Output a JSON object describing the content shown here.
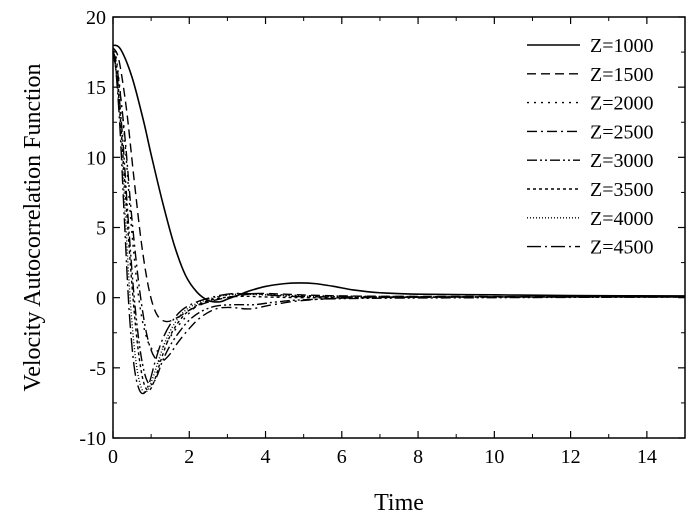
{
  "chart_data": {
    "type": "line",
    "title": "",
    "xlabel": "Time",
    "ylabel": "Velocity Autocorrelation Function",
    "xlim": [
      0,
      15
    ],
    "ylim": [
      -10,
      20
    ],
    "xticks": [
      0,
      2,
      4,
      6,
      8,
      10,
      12,
      14
    ],
    "yticks": [
      -10,
      -5,
      0,
      5,
      10,
      15,
      20
    ],
    "xtick_labels": [
      "0",
      "2",
      "4",
      "6",
      "8",
      "10",
      "12",
      "14"
    ],
    "ytick_labels": [
      "-10",
      "-5",
      "0",
      "5",
      "10",
      "15",
      "20"
    ],
    "grid": false,
    "legend_position": "top-right",
    "color": "#000000",
    "series": [
      {
        "name": "Z=1000",
        "dash": "solid",
        "x": [
          0,
          0.2,
          0.5,
          0.8,
          1.0,
          1.3,
          1.6,
          1.9,
          2.2,
          2.5,
          2.8,
          3.0,
          3.3,
          3.6,
          4.0,
          4.5,
          4.9,
          5.3,
          5.8,
          6.3,
          7.0,
          8.0,
          10.0,
          12.0,
          15.0
        ],
        "y": [
          18,
          17.7,
          15.7,
          12.6,
          10.2,
          6.8,
          3.8,
          1.6,
          0.4,
          -0.2,
          -0.3,
          -0.1,
          0.2,
          0.5,
          0.8,
          1.0,
          1.05,
          1.0,
          0.8,
          0.55,
          0.35,
          0.25,
          0.2,
          0.15,
          0.12
        ]
      },
      {
        "name": "Z=1500",
        "dash": "dash",
        "x": [
          0,
          0.15,
          0.35,
          0.55,
          0.75,
          0.95,
          1.15,
          1.4,
          1.7,
          2.0,
          2.4,
          2.8,
          3.3,
          3.8,
          4.5,
          5.5,
          7.0,
          10.0,
          15.0
        ],
        "y": [
          17.8,
          17.0,
          13.5,
          8.5,
          3.8,
          0.5,
          -1.2,
          -1.7,
          -1.4,
          -0.9,
          -0.4,
          -0.1,
          0.15,
          0.3,
          0.25,
          0.15,
          0.1,
          0.08,
          0.05
        ]
      },
      {
        "name": "Z=2000",
        "dash": "dot",
        "x": [
          0,
          0.1,
          0.3,
          0.5,
          0.7,
          0.9,
          1.1,
          1.35,
          1.6,
          1.9,
          2.2,
          2.6,
          3.0,
          3.5,
          4.0,
          5.0,
          6.5,
          10.0,
          15.0
        ],
        "y": [
          17.6,
          16.8,
          11.5,
          4.5,
          -0.5,
          -3.0,
          -3.8,
          -3.4,
          -2.4,
          -1.4,
          -0.6,
          -0.1,
          0.2,
          0.3,
          0.25,
          0.15,
          0.1,
          0.05,
          0.05
        ]
      },
      {
        "name": "Z=2500",
        "dash": "dashdot",
        "x": [
          0,
          0.1,
          0.3,
          0.5,
          0.7,
          0.9,
          1.1,
          1.3,
          1.5,
          1.7,
          2.0,
          2.3,
          2.7,
          3.1,
          3.6,
          4.2,
          5.0,
          6.5,
          10.0,
          15.0
        ],
        "y": [
          17.5,
          16.5,
          11.8,
          5.5,
          0.5,
          -2.8,
          -4.3,
          -4.5,
          -4.0,
          -3.2,
          -2.2,
          -1.4,
          -0.8,
          -0.7,
          -0.8,
          -0.5,
          -0.2,
          0.0,
          0.05,
          0.05
        ]
      },
      {
        "name": "Z=3000",
        "dash": "dashdotdot",
        "x": [
          0,
          0.1,
          0.25,
          0.4,
          0.55,
          0.7,
          0.85,
          1.0,
          1.15,
          1.3,
          1.5,
          1.75,
          2.0,
          2.3,
          2.7,
          3.2,
          3.7,
          4.3,
          5.0,
          6.5,
          10.0,
          15.0
        ],
        "y": [
          17.4,
          16.0,
          11.5,
          5.5,
          0.2,
          -3.5,
          -5.6,
          -6.2,
          -5.6,
          -4.5,
          -3.4,
          -2.4,
          -1.6,
          -1.0,
          -0.6,
          -0.5,
          -0.5,
          -0.3,
          -0.15,
          -0.05,
          0.0,
          0.05
        ]
      },
      {
        "name": "Z=3500",
        "dash": "shortdot",
        "x": [
          0,
          0.1,
          0.2,
          0.35,
          0.5,
          0.65,
          0.8,
          0.95,
          1.1,
          1.25,
          1.45,
          1.7,
          2.0,
          2.4,
          2.9,
          3.4,
          4.0,
          5.0,
          6.5,
          10.0,
          15.0
        ],
        "y": [
          17.4,
          15.8,
          12.6,
          6.5,
          0.8,
          -3.5,
          -6.0,
          -6.6,
          -5.8,
          -4.5,
          -3.0,
          -1.8,
          -0.9,
          -0.3,
          0.0,
          0.1,
          0.05,
          0.0,
          0.0,
          0.05,
          0.05
        ]
      },
      {
        "name": "Z=4000",
        "dash": "finedot",
        "x": [
          0,
          0.08,
          0.2,
          0.33,
          0.46,
          0.6,
          0.74,
          0.88,
          1.02,
          1.18,
          1.36,
          1.6,
          1.9,
          2.3,
          2.8,
          3.3,
          4.0,
          5.0,
          6.5,
          10.0,
          15.0
        ],
        "y": [
          17.5,
          16.2,
          12.0,
          5.5,
          -0.5,
          -4.5,
          -6.4,
          -6.7,
          -5.9,
          -4.6,
          -3.2,
          -1.9,
          -0.9,
          -0.3,
          0.1,
          0.25,
          0.2,
          0.1,
          0.05,
          0.05,
          0.05
        ]
      },
      {
        "name": "Z=4500",
        "dash": "longdashdot",
        "x": [
          0,
          0.07,
          0.18,
          0.3,
          0.42,
          0.55,
          0.68,
          0.82,
          0.96,
          1.1,
          1.28,
          1.5,
          1.8,
          2.2,
          2.7,
          3.2,
          3.8,
          4.6,
          6.0,
          10.0,
          15.0
        ],
        "y": [
          17.6,
          16.4,
          12.2,
          5.5,
          -0.8,
          -4.8,
          -6.5,
          -6.8,
          -6.0,
          -4.6,
          -3.1,
          -1.9,
          -0.9,
          -0.3,
          0.1,
          0.3,
          0.25,
          0.1,
          0.05,
          0.05,
          0.05
        ]
      }
    ]
  }
}
